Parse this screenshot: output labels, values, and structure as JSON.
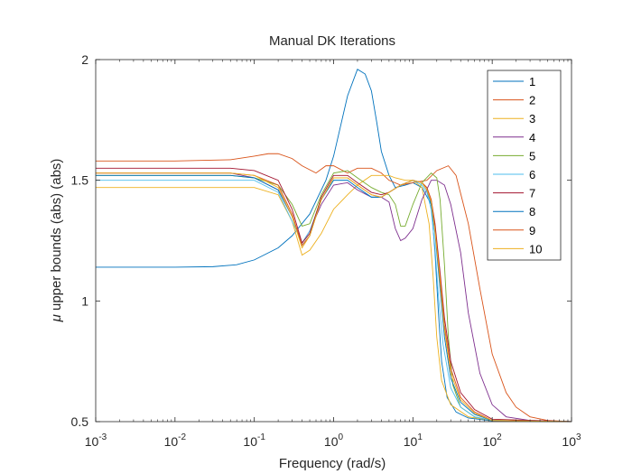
{
  "chart_data": {
    "type": "line",
    "title": "Manual DK Iterations",
    "xlabel": "Frequency (rad/s)",
    "ylabel_symbol": "μ",
    "ylabel_text": " upper bounds (abs) (abs)",
    "xscale": "log",
    "xlim": [
      0.001,
      1000
    ],
    "ylim": [
      0.5,
      2
    ],
    "xticks": [
      {
        "value": 0.001,
        "base": "10",
        "exp": "-3"
      },
      {
        "value": 0.01,
        "base": "10",
        "exp": "-2"
      },
      {
        "value": 0.1,
        "base": "10",
        "exp": "-1"
      },
      {
        "value": 1,
        "base": "10",
        "exp": "0"
      },
      {
        "value": 10,
        "base": "10",
        "exp": "1"
      },
      {
        "value": 100,
        "base": "10",
        "exp": "2"
      },
      {
        "value": 1000,
        "base": "10",
        "exp": "3"
      }
    ],
    "yticks": [
      {
        "value": 0.5,
        "label": "0.5"
      },
      {
        "value": 1,
        "label": "1"
      },
      {
        "value": 1.5,
        "label": "1.5"
      },
      {
        "value": 2,
        "label": "2"
      }
    ],
    "grid": false,
    "legend_position": "top-right",
    "series": [
      {
        "name": "1",
        "color": "#0072BD",
        "points": [
          [
            0.001,
            1.14
          ],
          [
            0.01,
            1.14
          ],
          [
            0.03,
            1.142
          ],
          [
            0.06,
            1.15
          ],
          [
            0.1,
            1.17
          ],
          [
            0.2,
            1.22
          ],
          [
            0.3,
            1.27
          ],
          [
            0.5,
            1.36
          ],
          [
            0.8,
            1.5
          ],
          [
            1,
            1.6
          ],
          [
            1.5,
            1.85
          ],
          [
            2,
            1.96
          ],
          [
            2.5,
            1.94
          ],
          [
            3,
            1.87
          ],
          [
            3.5,
            1.74
          ],
          [
            4,
            1.62
          ],
          [
            5,
            1.52
          ],
          [
            6,
            1.47
          ],
          [
            8,
            1.48
          ],
          [
            10,
            1.49
          ],
          [
            13,
            1.47
          ],
          [
            17,
            1.4
          ],
          [
            19,
            1.2
          ],
          [
            21,
            0.95
          ],
          [
            23,
            0.75
          ],
          [
            27,
            0.6
          ],
          [
            35,
            0.54
          ],
          [
            50,
            0.515
          ],
          [
            100,
            0.503
          ],
          [
            1000,
            0.5
          ]
        ]
      },
      {
        "name": "2",
        "color": "#D95319",
        "points": [
          [
            0.001,
            1.58
          ],
          [
            0.01,
            1.58
          ],
          [
            0.05,
            1.585
          ],
          [
            0.1,
            1.6
          ],
          [
            0.15,
            1.61
          ],
          [
            0.2,
            1.61
          ],
          [
            0.3,
            1.59
          ],
          [
            0.4,
            1.56
          ],
          [
            0.6,
            1.53
          ],
          [
            0.8,
            1.56
          ],
          [
            1,
            1.56
          ],
          [
            1.5,
            1.53
          ],
          [
            2,
            1.55
          ],
          [
            3,
            1.55
          ],
          [
            4,
            1.53
          ],
          [
            5,
            1.5
          ],
          [
            7,
            1.48
          ],
          [
            10,
            1.49
          ],
          [
            15,
            1.5
          ],
          [
            20,
            1.54
          ],
          [
            28,
            1.56
          ],
          [
            35,
            1.52
          ],
          [
            50,
            1.32
          ],
          [
            70,
            1.05
          ],
          [
            100,
            0.78
          ],
          [
            150,
            0.62
          ],
          [
            200,
            0.56
          ],
          [
            300,
            0.52
          ],
          [
            500,
            0.505
          ],
          [
            1000,
            0.5
          ]
        ]
      },
      {
        "name": "3",
        "color": "#EDB120",
        "points": [
          [
            0.001,
            1.47
          ],
          [
            0.01,
            1.47
          ],
          [
            0.05,
            1.47
          ],
          [
            0.1,
            1.47
          ],
          [
            0.2,
            1.44
          ],
          [
            0.3,
            1.33
          ],
          [
            0.4,
            1.19
          ],
          [
            0.5,
            1.21
          ],
          [
            0.7,
            1.28
          ],
          [
            1,
            1.38
          ],
          [
            1.5,
            1.44
          ],
          [
            2,
            1.48
          ],
          [
            3,
            1.52
          ],
          [
            4,
            1.52
          ],
          [
            5,
            1.52
          ],
          [
            6,
            1.51
          ],
          [
            8,
            1.5
          ],
          [
            10,
            1.5
          ],
          [
            13,
            1.47
          ],
          [
            16,
            1.32
          ],
          [
            18,
            1.1
          ],
          [
            20,
            0.85
          ],
          [
            23,
            0.67
          ],
          [
            30,
            0.57
          ],
          [
            50,
            0.52
          ],
          [
            100,
            0.505
          ],
          [
            1000,
            0.5
          ]
        ]
      },
      {
        "name": "4",
        "color": "#7E2F8E",
        "points": [
          [
            0.001,
            1.53
          ],
          [
            0.01,
            1.53
          ],
          [
            0.05,
            1.53
          ],
          [
            0.1,
            1.51
          ],
          [
            0.2,
            1.46
          ],
          [
            0.3,
            1.35
          ],
          [
            0.4,
            1.24
          ],
          [
            0.5,
            1.29
          ],
          [
            0.7,
            1.4
          ],
          [
            1,
            1.48
          ],
          [
            1.5,
            1.49
          ],
          [
            2,
            1.46
          ],
          [
            3,
            1.43
          ],
          [
            4,
            1.43
          ],
          [
            5,
            1.41
          ],
          [
            6,
            1.3
          ],
          [
            7,
            1.25
          ],
          [
            8,
            1.26
          ],
          [
            10,
            1.3
          ],
          [
            13,
            1.42
          ],
          [
            17,
            1.5
          ],
          [
            20,
            1.5
          ],
          [
            25,
            1.48
          ],
          [
            30,
            1.4
          ],
          [
            40,
            1.2
          ],
          [
            50,
            0.95
          ],
          [
            70,
            0.7
          ],
          [
            100,
            0.57
          ],
          [
            150,
            0.52
          ],
          [
            300,
            0.505
          ],
          [
            1000,
            0.5
          ]
        ]
      },
      {
        "name": "5",
        "color": "#77AC30",
        "points": [
          [
            0.001,
            1.52
          ],
          [
            0.01,
            1.52
          ],
          [
            0.05,
            1.52
          ],
          [
            0.1,
            1.51
          ],
          [
            0.2,
            1.48
          ],
          [
            0.3,
            1.4
          ],
          [
            0.4,
            1.31
          ],
          [
            0.5,
            1.32
          ],
          [
            0.7,
            1.44
          ],
          [
            1,
            1.53
          ],
          [
            1.5,
            1.54
          ],
          [
            2,
            1.51
          ],
          [
            3,
            1.47
          ],
          [
            4,
            1.45
          ],
          [
            5,
            1.44
          ],
          [
            6,
            1.4
          ],
          [
            7,
            1.31
          ],
          [
            8,
            1.31
          ],
          [
            10,
            1.4
          ],
          [
            13,
            1.49
          ],
          [
            17,
            1.53
          ],
          [
            20,
            1.51
          ],
          [
            22,
            1.42
          ],
          [
            25,
            1.15
          ],
          [
            28,
            0.85
          ],
          [
            32,
            0.65
          ],
          [
            40,
            0.56
          ],
          [
            60,
            0.52
          ],
          [
            100,
            0.505
          ],
          [
            1000,
            0.5
          ]
        ]
      },
      {
        "name": "6",
        "color": "#4DBEEE",
        "points": [
          [
            0.001,
            1.5
          ],
          [
            0.01,
            1.5
          ],
          [
            0.05,
            1.5
          ],
          [
            0.1,
            1.5
          ],
          [
            0.2,
            1.45
          ],
          [
            0.3,
            1.33
          ],
          [
            0.4,
            1.24
          ],
          [
            0.5,
            1.29
          ],
          [
            0.7,
            1.42
          ],
          [
            1,
            1.5
          ],
          [
            1.5,
            1.5
          ],
          [
            2,
            1.47
          ],
          [
            3,
            1.43
          ],
          [
            4,
            1.43
          ],
          [
            5,
            1.45
          ],
          [
            7,
            1.48
          ],
          [
            10,
            1.5
          ],
          [
            13,
            1.48
          ],
          [
            15,
            1.45
          ],
          [
            17,
            1.38
          ],
          [
            19,
            1.22
          ],
          [
            21,
            1.02
          ],
          [
            24,
            0.82
          ],
          [
            30,
            0.64
          ],
          [
            40,
            0.56
          ],
          [
            60,
            0.52
          ],
          [
            100,
            0.505
          ],
          [
            1000,
            0.5
          ]
        ]
      },
      {
        "name": "7",
        "color": "#A2142F",
        "points": [
          [
            0.001,
            1.55
          ],
          [
            0.01,
            1.55
          ],
          [
            0.05,
            1.55
          ],
          [
            0.1,
            1.54
          ],
          [
            0.2,
            1.5
          ],
          [
            0.3,
            1.38
          ],
          [
            0.4,
            1.24
          ],
          [
            0.5,
            1.28
          ],
          [
            0.7,
            1.43
          ],
          [
            1,
            1.52
          ],
          [
            1.5,
            1.52
          ],
          [
            2,
            1.49
          ],
          [
            3,
            1.45
          ],
          [
            4,
            1.44
          ],
          [
            5,
            1.45
          ],
          [
            7,
            1.48
          ],
          [
            10,
            1.5
          ],
          [
            13,
            1.49
          ],
          [
            15,
            1.47
          ],
          [
            17,
            1.42
          ],
          [
            19,
            1.32
          ],
          [
            22,
            1.12
          ],
          [
            25,
            0.93
          ],
          [
            30,
            0.75
          ],
          [
            40,
            0.62
          ],
          [
            60,
            0.55
          ],
          [
            100,
            0.51
          ],
          [
            1000,
            0.5
          ]
        ]
      },
      {
        "name": "8",
        "color": "#0072BD",
        "points": [
          [
            0.001,
            1.52
          ],
          [
            0.01,
            1.52
          ],
          [
            0.05,
            1.52
          ],
          [
            0.1,
            1.51
          ],
          [
            0.2,
            1.46
          ],
          [
            0.3,
            1.35
          ],
          [
            0.4,
            1.23
          ],
          [
            0.5,
            1.27
          ],
          [
            0.7,
            1.42
          ],
          [
            1,
            1.5
          ],
          [
            1.5,
            1.5
          ],
          [
            2,
            1.47
          ],
          [
            3,
            1.43
          ],
          [
            4,
            1.43
          ],
          [
            5,
            1.45
          ],
          [
            7,
            1.48
          ],
          [
            10,
            1.5
          ],
          [
            13,
            1.49
          ],
          [
            15,
            1.46
          ],
          [
            17,
            1.4
          ],
          [
            19,
            1.28
          ],
          [
            22,
            1.05
          ],
          [
            25,
            0.85
          ],
          [
            30,
            0.68
          ],
          [
            40,
            0.58
          ],
          [
            60,
            0.53
          ],
          [
            100,
            0.505
          ],
          [
            1000,
            0.5
          ]
        ]
      },
      {
        "name": "9",
        "color": "#D95319",
        "points": [
          [
            0.001,
            1.53
          ],
          [
            0.01,
            1.53
          ],
          [
            0.05,
            1.53
          ],
          [
            0.1,
            1.52
          ],
          [
            0.2,
            1.48
          ],
          [
            0.3,
            1.36
          ],
          [
            0.4,
            1.23
          ],
          [
            0.5,
            1.27
          ],
          [
            0.7,
            1.42
          ],
          [
            1,
            1.51
          ],
          [
            1.5,
            1.51
          ],
          [
            2,
            1.48
          ],
          [
            3,
            1.44
          ],
          [
            4,
            1.43
          ],
          [
            5,
            1.45
          ],
          [
            7,
            1.48
          ],
          [
            10,
            1.5
          ],
          [
            13,
            1.49
          ],
          [
            15,
            1.47
          ],
          [
            17,
            1.42
          ],
          [
            19,
            1.3
          ],
          [
            22,
            1.1
          ],
          [
            25,
            0.9
          ],
          [
            30,
            0.72
          ],
          [
            40,
            0.6
          ],
          [
            60,
            0.54
          ],
          [
            100,
            0.505
          ],
          [
            1000,
            0.5
          ]
        ]
      },
      {
        "name": "10",
        "color": "#EDB120",
        "points": [
          [
            0.001,
            1.53
          ],
          [
            0.01,
            1.53
          ],
          [
            0.05,
            1.53
          ],
          [
            0.1,
            1.52
          ],
          [
            0.2,
            1.47
          ],
          [
            0.3,
            1.35
          ],
          [
            0.4,
            1.22
          ],
          [
            0.5,
            1.27
          ],
          [
            0.7,
            1.42
          ],
          [
            1,
            1.51
          ],
          [
            1.5,
            1.51
          ],
          [
            2,
            1.48
          ],
          [
            3,
            1.44
          ],
          [
            4,
            1.43
          ],
          [
            5,
            1.45
          ],
          [
            7,
            1.48
          ],
          [
            10,
            1.5
          ],
          [
            13,
            1.49
          ],
          [
            15,
            1.46
          ],
          [
            17,
            1.41
          ],
          [
            19,
            1.29
          ],
          [
            22,
            1.08
          ],
          [
            25,
            0.88
          ],
          [
            30,
            0.7
          ],
          [
            40,
            0.59
          ],
          [
            60,
            0.535
          ],
          [
            100,
            0.505
          ],
          [
            1000,
            0.5
          ]
        ]
      }
    ]
  }
}
